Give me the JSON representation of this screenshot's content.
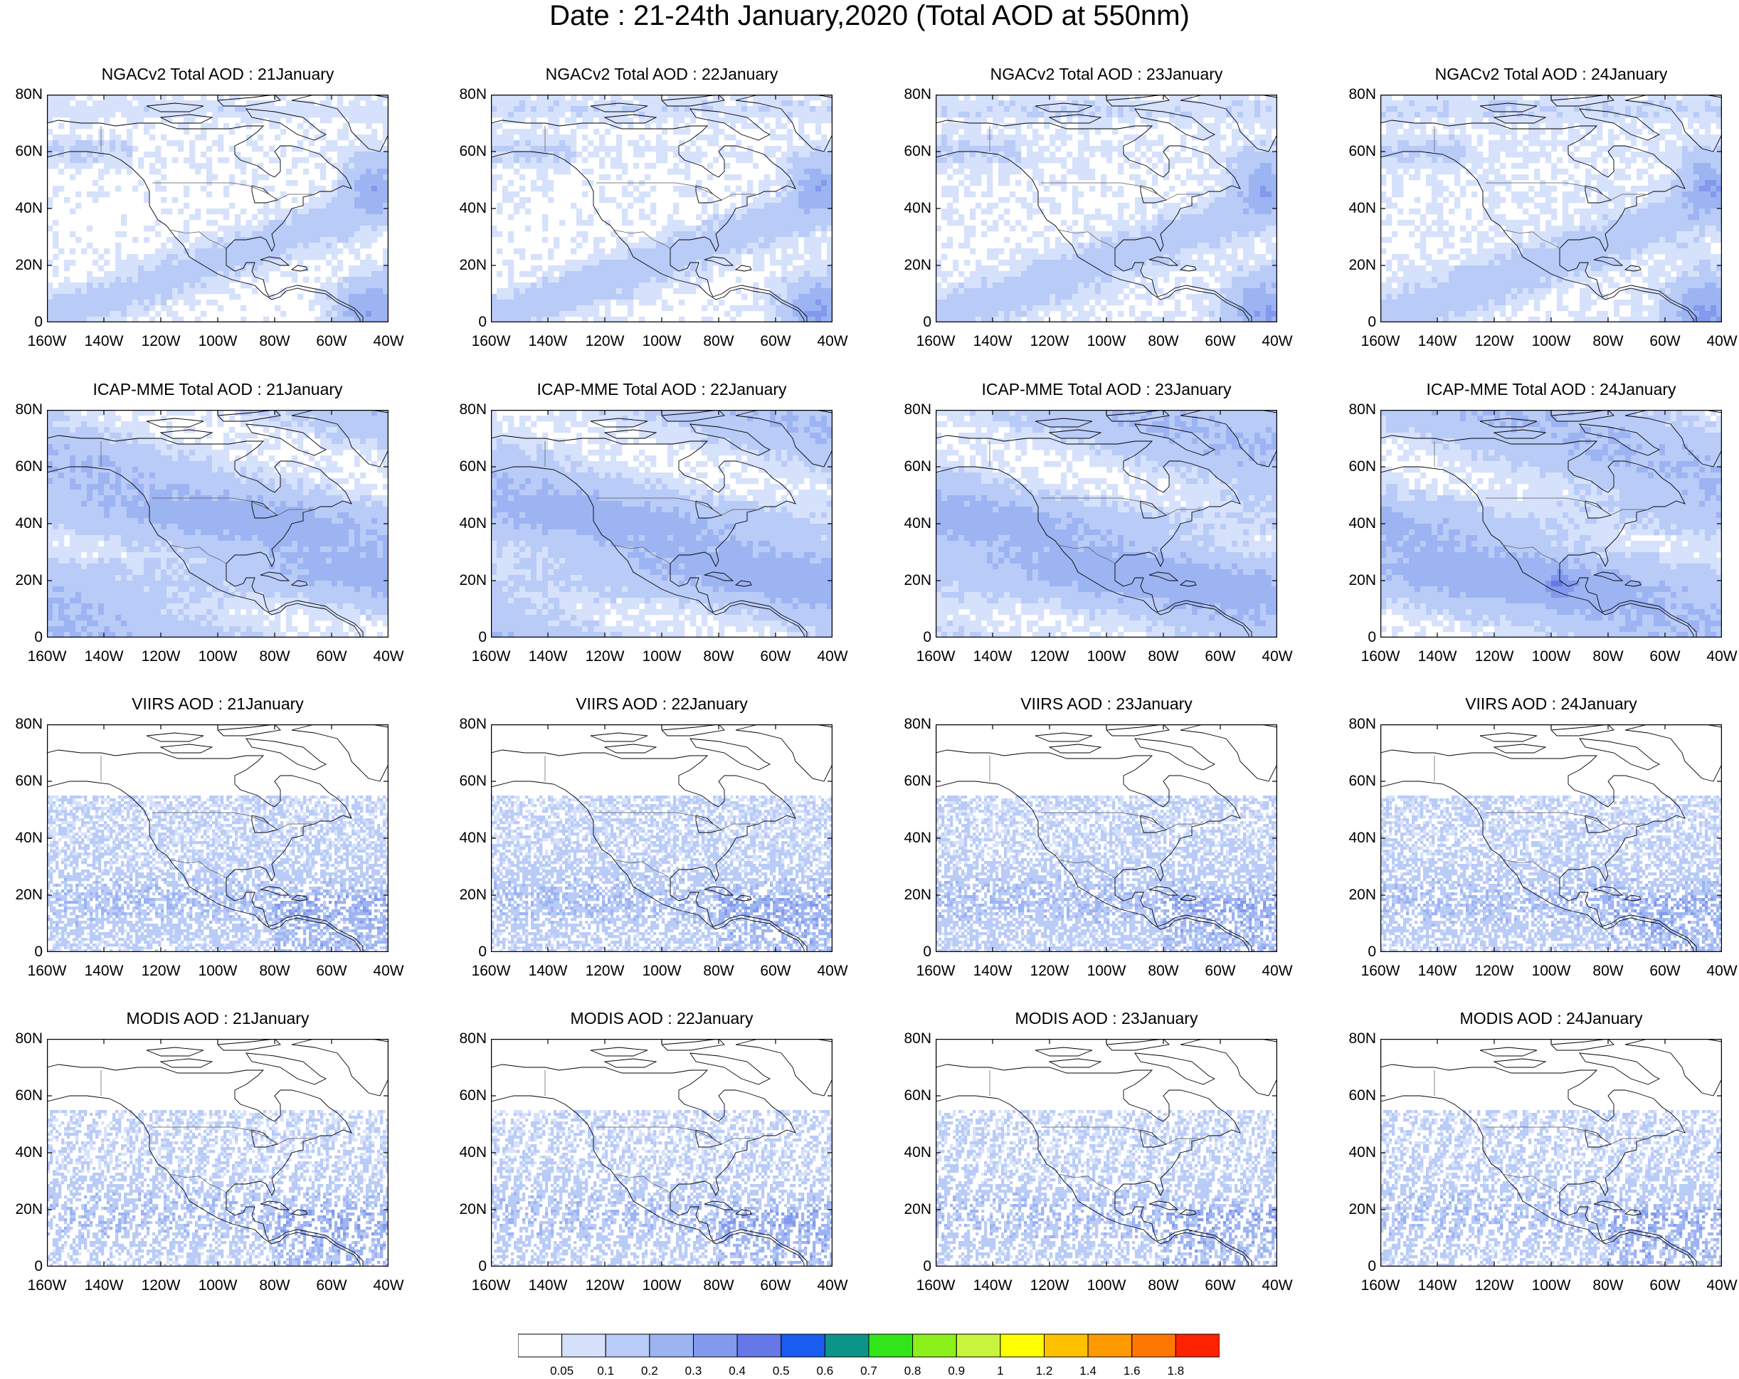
{
  "title": "Date : 21-24th January,2020 (Total AOD at 550nm)",
  "chart_data": {
    "type": "heatmap",
    "title": "Date : 21-24th January,2020 (Total AOD at 550nm)",
    "rows": [
      {
        "product": "NGACv2 Total AOD",
        "panels": [
          "NGACv2 Total AOD : 21January",
          "NGACv2 Total AOD : 22January",
          "NGACv2 Total AOD : 23January",
          "NGACv2 Total AOD : 24January"
        ]
      },
      {
        "product": "ICAP-MME Total AOD",
        "panels": [
          "ICAP-MME Total AOD : 21January",
          "ICAP-MME Total AOD : 22January",
          "ICAP-MME Total AOD : 23January",
          "ICAP-MME Total AOD : 24January"
        ]
      },
      {
        "product": "VIIRS AOD",
        "panels": [
          "VIIRS AOD : 21January",
          "VIIRS AOD : 22January",
          "VIIRS AOD : 23January",
          "VIIRS AOD : 24January"
        ]
      },
      {
        "product": "MODIS AOD",
        "panels": [
          "MODIS AOD : 21January",
          "MODIS AOD : 22January",
          "MODIS AOD : 23January",
          "MODIS AOD : 24January"
        ]
      }
    ],
    "x_ticks": [
      "160W",
      "140W",
      "120W",
      "100W",
      "80W",
      "60W",
      "40W"
    ],
    "y_ticks": [
      "80N",
      "60N",
      "40N",
      "20N",
      "0"
    ],
    "xlim": [
      -160,
      -40
    ],
    "ylim": [
      0,
      80
    ],
    "colorbar": {
      "levels": [
        "0.05",
        "0.1",
        "0.2",
        "0.3",
        "0.4",
        "0.5",
        "0.6",
        "0.7",
        "0.8",
        "0.9",
        "1",
        "1.2",
        "1.4",
        "1.6",
        "1.8"
      ],
      "colors": [
        "#ffffff",
        "#d6e1fb",
        "#b9cbf7",
        "#9db4f3",
        "#8299ee",
        "#6677e8",
        "#1a5cf0",
        "#0d9488",
        "#33e61a",
        "#8cf01a",
        "#c8f53c",
        "#ffff00",
        "#ffc000",
        "#ff9900",
        "#ff7700",
        "#ff2200"
      ]
    },
    "grid": false
  }
}
